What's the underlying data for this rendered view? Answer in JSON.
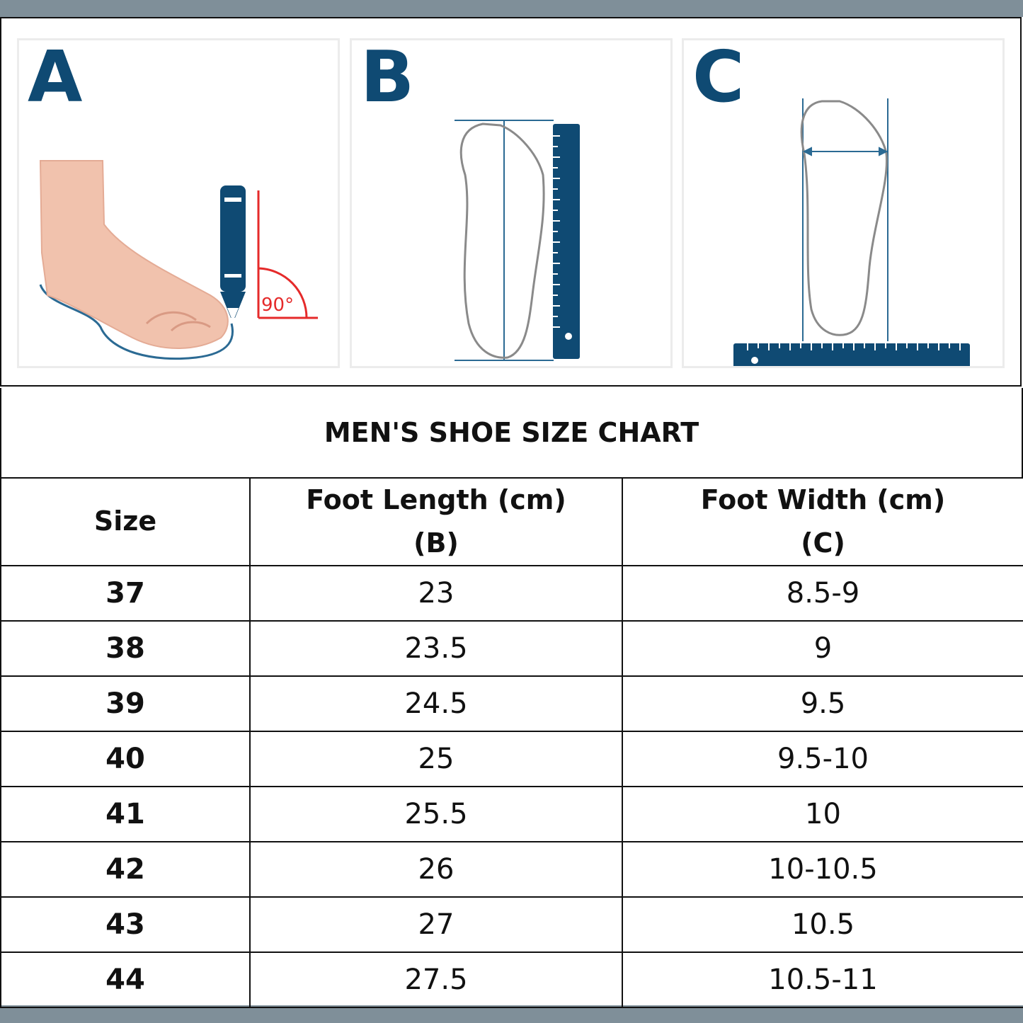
{
  "panels": [
    {
      "letter": "A",
      "angle_label": "90°"
    },
    {
      "letter": "B"
    },
    {
      "letter": "C"
    }
  ],
  "chart_title": "MEN'S SHOE SIZE CHART",
  "table": {
    "headers": {
      "size": "Size",
      "length_line1": "Foot Length (cm)",
      "length_line2": "(B)",
      "width_line1": "Foot Width (cm)",
      "width_line2": "(C)"
    },
    "rows": [
      {
        "size": "37",
        "length": "23",
        "width": "8.5-9"
      },
      {
        "size": "38",
        "length": "23.5",
        "width": "9"
      },
      {
        "size": "39",
        "length": "24.5",
        "width": "9.5"
      },
      {
        "size": "40",
        "length": "25",
        "width": "9.5-10"
      },
      {
        "size": "41",
        "length": "25.5",
        "width": "10"
      },
      {
        "size": "42",
        "length": "26",
        "width": "10-10.5"
      },
      {
        "size": "43",
        "length": "27",
        "width": "10.5"
      },
      {
        "size": "44",
        "length": "27.5",
        "width": "10.5-11"
      }
    ]
  },
  "colors": {
    "accent": "#0f4a73",
    "angle": "#e52a2a",
    "skin": "#f1c2ad",
    "outline": "#8a8a8a"
  }
}
